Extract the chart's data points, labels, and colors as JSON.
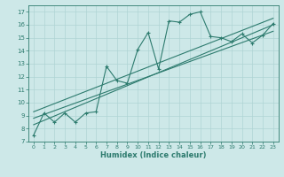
{
  "xlabel": "Humidex (Indice chaleur)",
  "bg_color": "#cde8e8",
  "line_color": "#2d7b6e",
  "grid_color": "#afd4d4",
  "xlim": [
    -0.5,
    23.5
  ],
  "ylim": [
    7,
    17.5
  ],
  "xticks": [
    0,
    1,
    2,
    3,
    4,
    5,
    6,
    7,
    8,
    9,
    10,
    11,
    12,
    13,
    14,
    15,
    16,
    17,
    18,
    19,
    20,
    21,
    22,
    23
  ],
  "yticks": [
    7,
    8,
    9,
    10,
    11,
    12,
    13,
    14,
    15,
    16,
    17
  ],
  "main_line_x": [
    0,
    1,
    2,
    3,
    4,
    5,
    6,
    7,
    8,
    9,
    10,
    11,
    12,
    13,
    14,
    15,
    16,
    17,
    18,
    19,
    20,
    21,
    22,
    23
  ],
  "main_line_y": [
    7.5,
    9.2,
    8.5,
    9.2,
    8.5,
    9.2,
    9.3,
    12.8,
    11.7,
    11.5,
    14.1,
    15.4,
    12.6,
    16.3,
    16.2,
    16.8,
    17.0,
    15.1,
    15.0,
    14.7,
    15.3,
    14.6,
    15.2,
    16.1
  ],
  "reg_line1_x": [
    0,
    23
  ],
  "reg_line1_y": [
    8.3,
    16.0
  ],
  "reg_line2_x": [
    0,
    23
  ],
  "reg_line2_y": [
    8.8,
    15.5
  ],
  "reg_line3_x": [
    0,
    23
  ],
  "reg_line3_y": [
    9.3,
    16.5
  ]
}
